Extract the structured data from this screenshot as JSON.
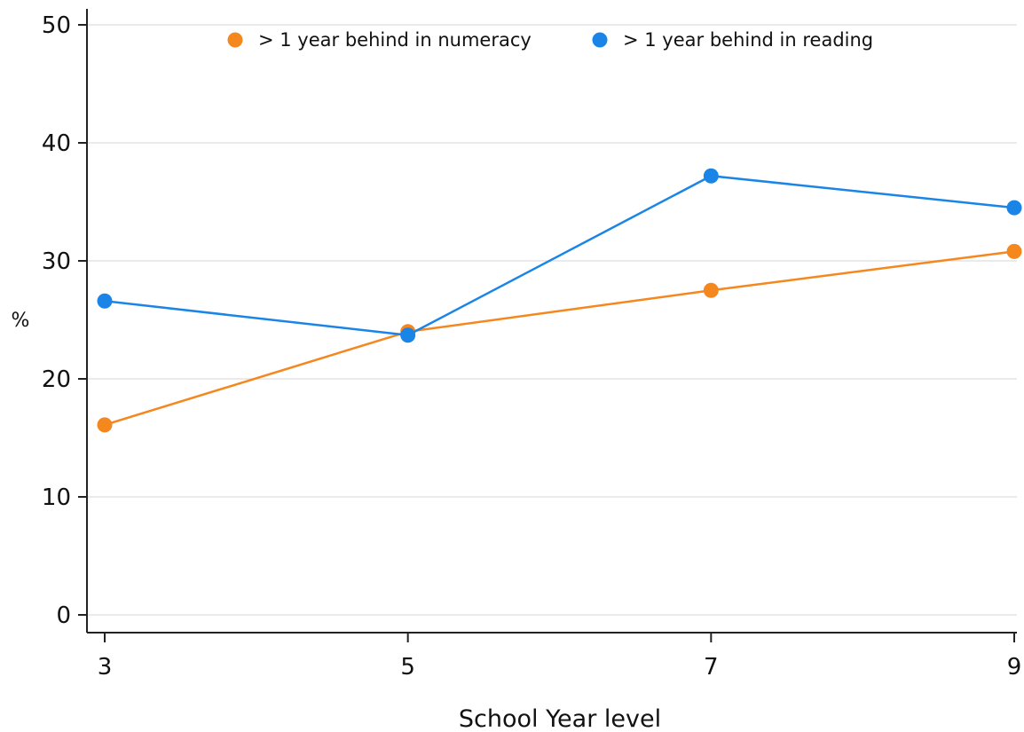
{
  "chart_data": {
    "type": "line",
    "title": "",
    "xlabel": "School Year level",
    "ylabel": "%",
    "x": [
      3,
      5,
      7,
      9
    ],
    "x_ticks": [
      "3",
      "5",
      "7",
      "9"
    ],
    "y_ticks": [
      "0",
      "10",
      "20",
      "30",
      "40",
      "50"
    ],
    "ylim": [
      0,
      50
    ],
    "xlim": [
      3,
      9
    ],
    "grid": true,
    "legend_position": "top",
    "series": [
      {
        "name": "> 1 year behind in numeracy",
        "values": [
          16.1,
          24.0,
          27.5,
          30.8
        ],
        "color": "#f5871f"
      },
      {
        "name": "> 1 year behind in reading",
        "values": [
          26.6,
          23.7,
          37.2,
          34.5
        ],
        "color": "#1a85e6"
      }
    ]
  }
}
